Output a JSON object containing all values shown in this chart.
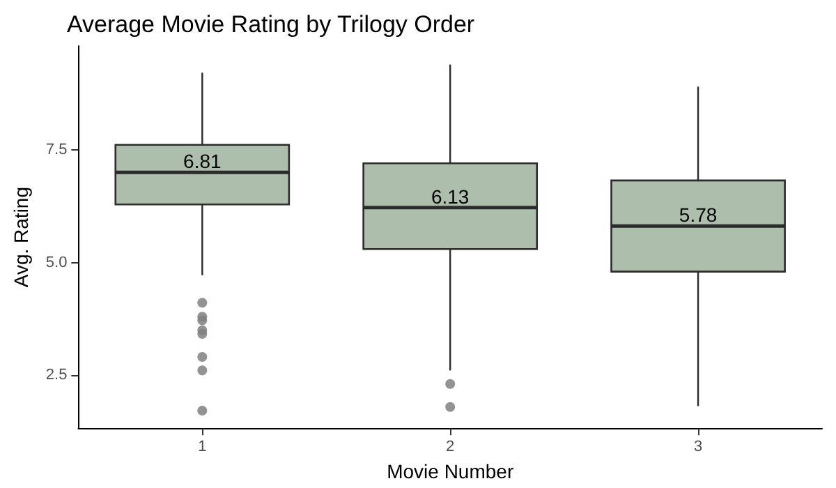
{
  "chart_data": {
    "type": "box",
    "title": "Average Movie Rating by Trilogy Order",
    "xlabel": "Movie Number",
    "ylabel": "Avg. Rating",
    "categories": [
      "1",
      "2",
      "3"
    ],
    "series": [
      {
        "color": "#adbfac",
        "boxes": [
          {
            "low": 4.72,
            "q1": 6.29,
            "median": 7.0,
            "q3": 7.61,
            "high": 9.21
          },
          {
            "low": 2.61,
            "q1": 5.3,
            "median": 6.22,
            "q3": 7.2,
            "high": 9.39
          },
          {
            "low": 1.82,
            "q1": 4.8,
            "median": 5.81,
            "q3": 6.82,
            "high": 8.9
          }
        ]
      },
      {
        "type": "scatter",
        "color": "#808080",
        "x": [
          "1",
          "1",
          "1",
          "1",
          "1",
          "1",
          "1",
          "1",
          "2",
          "2"
        ],
        "values": [
          4.11,
          3.8,
          3.72,
          3.5,
          3.42,
          2.91,
          2.61,
          1.72,
          2.31,
          1.8
        ]
      }
    ],
    "annotations": [
      {
        "text": "6.81",
        "x": "1",
        "y": 7.0
      },
      {
        "text": "6.13",
        "x": "2",
        "y": 6.22
      },
      {
        "text": "5.78",
        "x": "3",
        "y": 5.81
      }
    ],
    "ylim": [
      1.33,
      9.8
    ],
    "yticks": [
      {
        "value": 2.5,
        "label": "2.5"
      },
      {
        "value": 5.0,
        "label": "5.0"
      },
      {
        "value": 7.5,
        "label": "7.5"
      }
    ],
    "grid": false
  }
}
